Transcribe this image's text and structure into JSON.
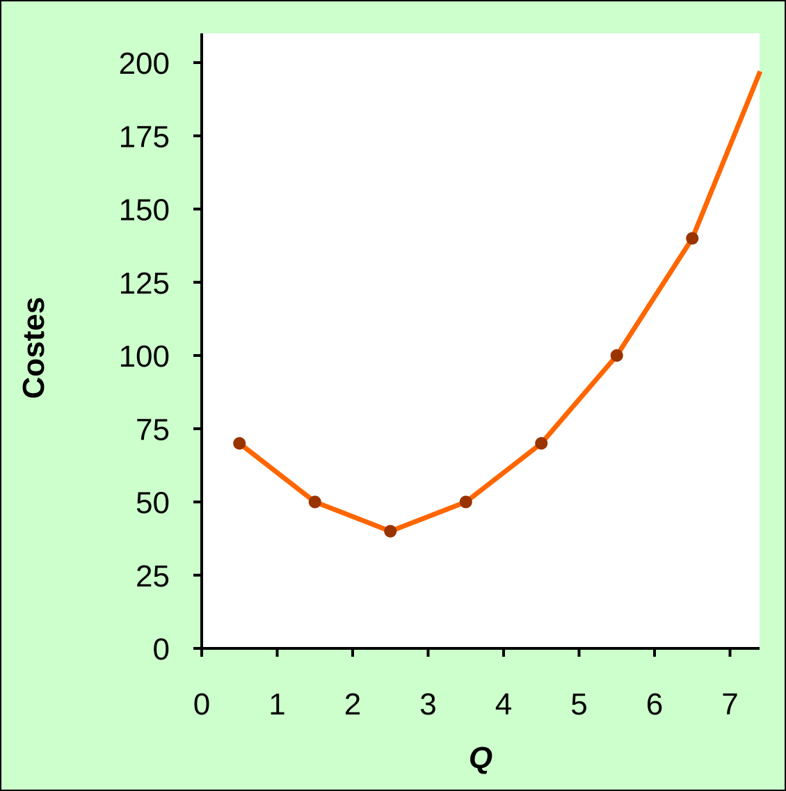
{
  "colors": {
    "background": "#ccffcc",
    "plot_area": "#ffffff",
    "line": "#ff6600",
    "marker": "#993300",
    "axis": "#000000"
  },
  "chart_data": {
    "type": "line",
    "xlabel": "Q",
    "ylabel": "Costes",
    "xlim": [
      0,
      7.4
    ],
    "ylim": [
      0,
      210
    ],
    "x_ticks": [
      "0",
      "1",
      "2",
      "3",
      "4",
      "5",
      "6",
      "7"
    ],
    "y_ticks": [
      "0",
      "25",
      "50",
      "75",
      "100",
      "125",
      "150",
      "175",
      "200"
    ],
    "grid": false,
    "series": [
      {
        "points": [
          {
            "x": 0.5,
            "y": 70
          },
          {
            "x": 1.5,
            "y": 50
          },
          {
            "x": 2.5,
            "y": 40
          },
          {
            "x": 3.5,
            "y": 50
          },
          {
            "x": 4.5,
            "y": 70
          },
          {
            "x": 5.5,
            "y": 100
          },
          {
            "x": 6.5,
            "y": 140
          }
        ],
        "curve_extends_to": {
          "x": 7.4,
          "y": 197
        }
      }
    ]
  }
}
